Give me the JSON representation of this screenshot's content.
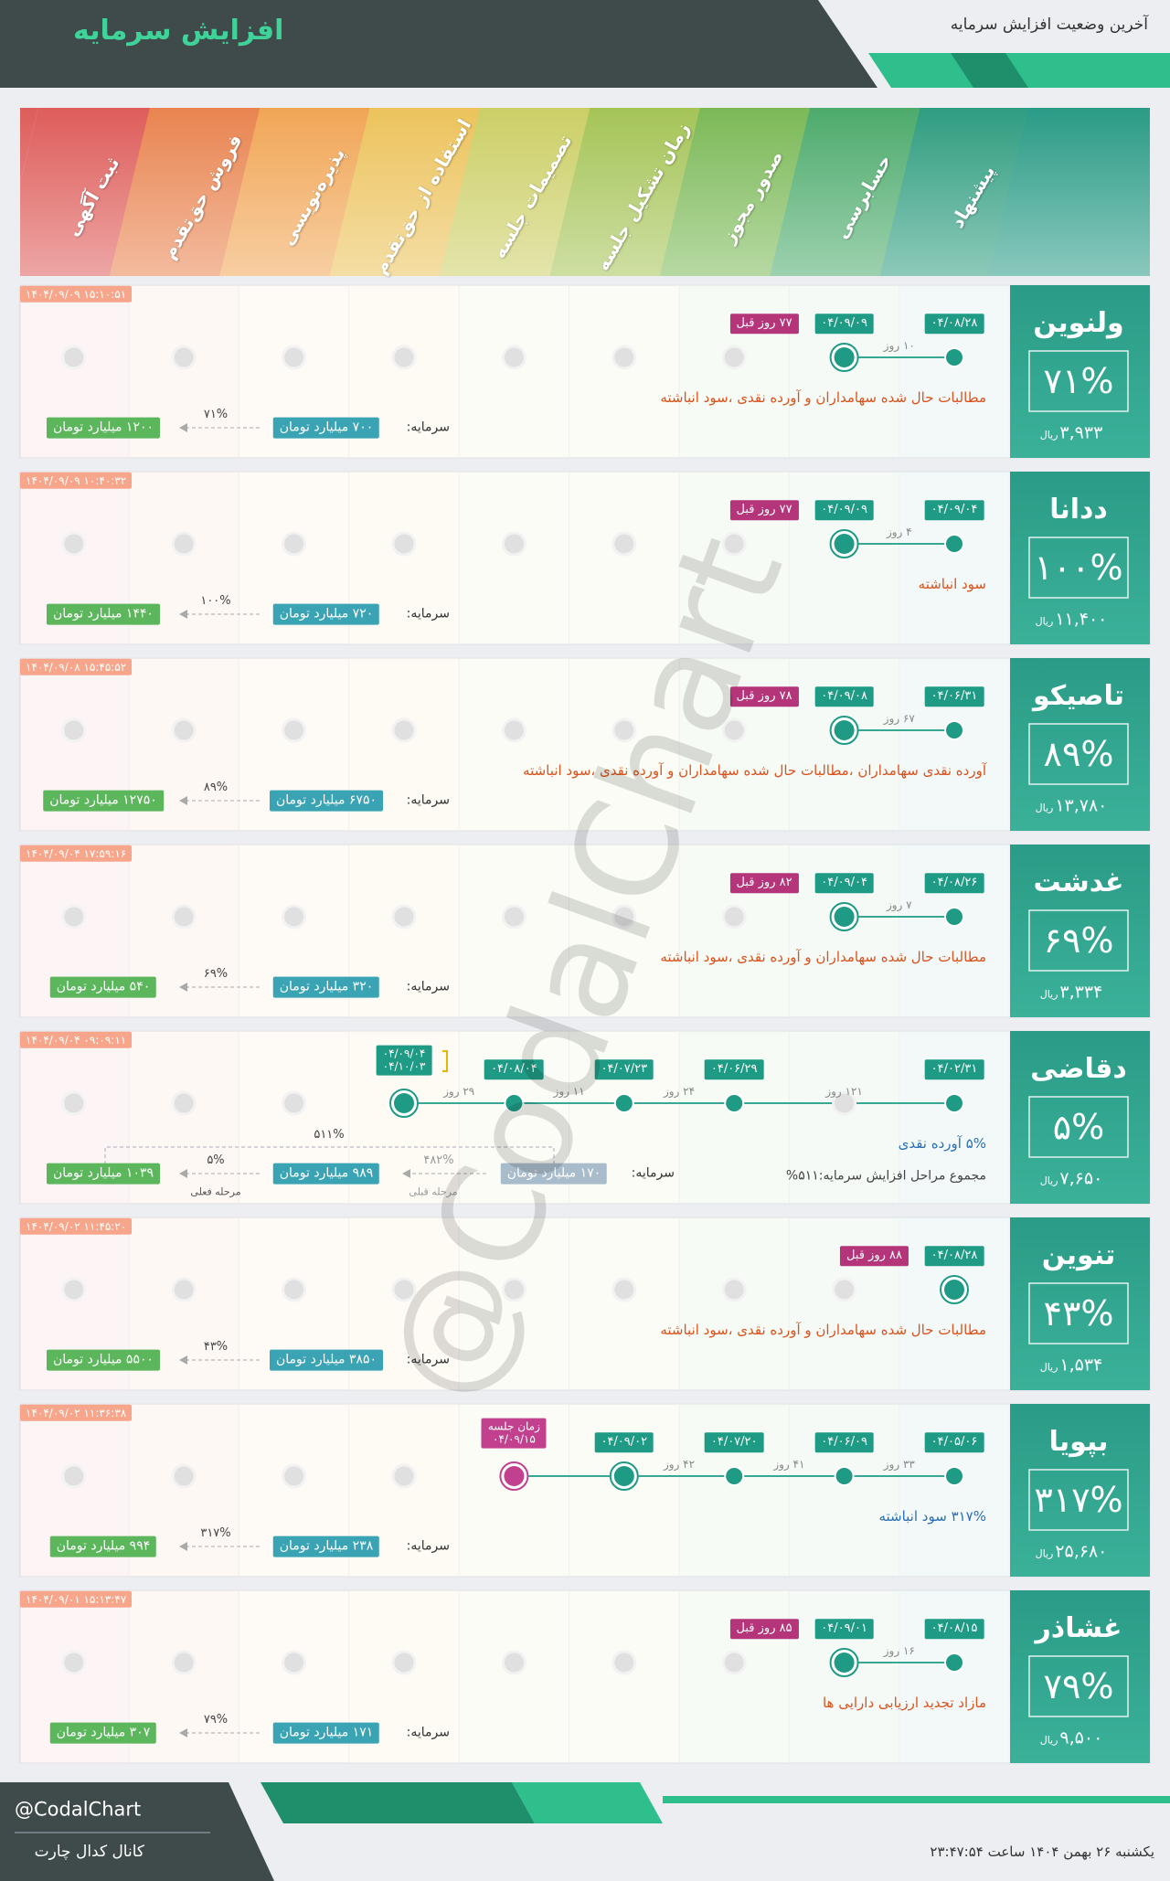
{
  "header": {
    "title": "افزایش سرمایه",
    "subtitle": "آخرین وضعیت افزایش سرمایه"
  },
  "watermark": "@CodalChart",
  "price_unit": "ریال",
  "capital_label": "سرمایه:",
  "stages": [
    "پیشنهاد",
    "حسابرسی",
    "صدور مجوز",
    "زمان تشکیل جلسه",
    "تصمیمات جلسه",
    "استفاده از حق‌تقدم",
    "پذیره‌نویسی",
    "فروش حق‌تقدم",
    "ثبت آگهی"
  ],
  "stage_colors": [
    "#2f9d80",
    "#4dab6c",
    "#7bb957",
    "#a5c457",
    "#cccf66",
    "#ecc35c",
    "#f1a656",
    "#e98450",
    "#de5d5a"
  ],
  "rows": [
    {
      "symbol": "ولنوین",
      "percent": "۷۱%",
      "price": "۳,۹۳۳",
      "timestamp": "۱۴۰۴/۰۹/۰۹ ۱۵:۱۰:۵۱",
      "stages": [
        {
          "date": "۰۴/۰۸/۲۸"
        },
        {
          "date": "۰۴/۰۹/۰۹"
        }
      ],
      "days": [
        "۱۰ روز"
      ],
      "ago": "۷۷ روز قبل",
      "description": "مطالبات حال شده سهامداران و آورده نقدی ،سود انباشته",
      "capital_before": "۷۰۰ میلیارد تومان",
      "capital_after": "۱۲۰۰ میلیارد تومان",
      "increase": "۷۱%"
    },
    {
      "symbol": "ددانا",
      "percent": "۱۰۰%",
      "price": "۱۱,۴۰۰",
      "timestamp": "۱۴۰۴/۰۹/۰۹ ۱۰:۴۰:۳۲",
      "stages": [
        {
          "date": "۰۴/۰۹/۰۴"
        },
        {
          "date": "۰۴/۰۹/۰۹"
        }
      ],
      "days": [
        "۴ روز"
      ],
      "ago": "۷۷ روز قبل",
      "description": "سود انباشته",
      "capital_before": "۷۲۰ میلیارد تومان",
      "capital_after": "۱۴۴۰ میلیارد تومان",
      "increase": "۱۰۰%"
    },
    {
      "symbol": "تاصیکو",
      "percent": "۸۹%",
      "price": "۱۳,۷۸۰",
      "timestamp": "۱۴۰۴/۰۹/۰۸ ۱۵:۴۵:۵۲",
      "stages": [
        {
          "date": "۰۴/۰۶/۳۱"
        },
        {
          "date": "۰۴/۰۹/۰۸"
        }
      ],
      "days": [
        "۶۷ روز"
      ],
      "ago": "۷۸ روز قبل",
      "description": "آورده نقدی سهامداران ،مطالبات حال شده سهامداران و آورده نقدی ،سود انباشته",
      "capital_before": "۶۷۵۰ میلیارد تومان",
      "capital_after": "۱۲۷۵۰ میلیارد تومان",
      "increase": "۸۹%"
    },
    {
      "symbol": "غدشت",
      "percent": "۶۹%",
      "price": "۳,۳۳۴",
      "timestamp": "۱۴۰۴/۰۹/۰۴ ۱۷:۵۹:۱۶",
      "stages": [
        {
          "date": "۰۴/۰۸/۲۶"
        },
        {
          "date": "۰۴/۰۹/۰۴"
        }
      ],
      "days": [
        "۷ روز"
      ],
      "ago": "۸۲ روز قبل",
      "description": "مطالبات حال شده سهامداران و آورده نقدی ،سود انباشته",
      "capital_before": "۳۲۰ میلیارد تومان",
      "capital_after": "۵۴۰ میلیارد تومان",
      "increase": "۶۹%"
    },
    {
      "symbol": "دقاضی",
      "percent": "۵%",
      "price": "۷,۶۵۰",
      "timestamp": "۱۴۰۴/۰۹/۰۴ ۰۹:۰۹:۱۱",
      "stages": [
        {
          "date": "۰۴/۰۲/۳۱"
        },
        null,
        {
          "date": "۰۴/۰۶/۲۹"
        },
        {
          "date": "۰۴/۰۷/۲۳"
        },
        {
          "date": "۰۴/۰۸/۰۴"
        },
        {
          "date": "۰۴/۰۹/۰۴",
          "date2": "۰۴/۱۰/۰۳"
        }
      ],
      "days": [
        "۱۲۱ روز",
        "۲۴ روز",
        "۱۱ روز",
        "۲۹ روز"
      ],
      "description": "۵% آورده نقدی",
      "description_color": "#2c6fb5",
      "description2": "مجموع مراحل افزایش سرمایه:۵۱۱%",
      "capital_prev": "۱۷۰ میلیارد تومان",
      "increase_prev": "۴۸۲%",
      "caption_prev": "مرحله قبلی",
      "capital_before": "۹۸۹ میلیارد تومان",
      "capital_after": "۱۰۳۹ میلیارد تومان",
      "increase": "۵%",
      "caption_current": "مرحله فعلی",
      "increase_total": "۵۱۱%"
    },
    {
      "symbol": "تنوین",
      "percent": "۴۳%",
      "price": "۱,۵۳۴",
      "timestamp": "۱۴۰۴/۰۹/۰۲ ۱۱:۴۵:۲۰",
      "stages": [
        {
          "date": "۰۴/۰۸/۲۸"
        }
      ],
      "days": [],
      "ago": "۸۸ روز قبل",
      "description": "مطالبات حال شده سهامداران و آورده نقدی ،سود انباشته",
      "capital_before": "۳۸۵۰ میلیارد تومان",
      "capital_after": "۵۵۰۰ میلیارد تومان",
      "increase": "۴۳%"
    },
    {
      "symbol": "بپویا",
      "percent": "۳۱۷%",
      "price": "۲۵,۶۸۰",
      "timestamp": "۱۴۰۴/۰۹/۰۲ ۱۱:۳۶:۳۸",
      "stages": [
        {
          "date": "۰۴/۰۵/۰۶"
        },
        {
          "date": "۰۴/۰۶/۰۹"
        },
        {
          "date": "۰۴/۰۷/۲۰"
        },
        {
          "date": "۰۴/۰۹/۰۲"
        },
        {
          "caption": "زمان جلسه",
          "date": "۰۴/۰۹/۱۵",
          "color": "#c2418f"
        }
      ],
      "days": [
        "۳۳ روز",
        "۴۱ روز",
        "۴۲ روز"
      ],
      "description": "۳۱۷% سود انباشته",
      "description_color": "#2c6fb5",
      "capital_before": "۲۳۸ میلیارد تومان",
      "capital_after": "۹۹۴ میلیارد تومان",
      "increase": "۳۱۷%"
    },
    {
      "symbol": "غشاذر",
      "percent": "۷۹%",
      "price": "۹,۵۰۰",
      "timestamp": "۱۴۰۴/۰۹/۰۱ ۱۵:۱۳:۴۷",
      "stages": [
        {
          "date": "۰۴/۰۸/۱۵"
        },
        {
          "date": "۰۴/۰۹/۰۱"
        }
      ],
      "days": [
        "۱۶ روز"
      ],
      "ago": "۸۵ روز قبل",
      "description": "مازاد تجدید ارزیابی دارایی ها",
      "capital_before": "۱۷۱ میلیارد تومان",
      "capital_after": "۳۰۷ میلیارد تومان",
      "increase": "۷۹%"
    }
  ],
  "footer": {
    "handle": "@CodalChart",
    "channel": "کانال کدال چارت",
    "datetime": "یکشنبه ۲۶ بهمن ۱۴۰۴ ساعت ۲۳:۴۷:۵۴"
  }
}
